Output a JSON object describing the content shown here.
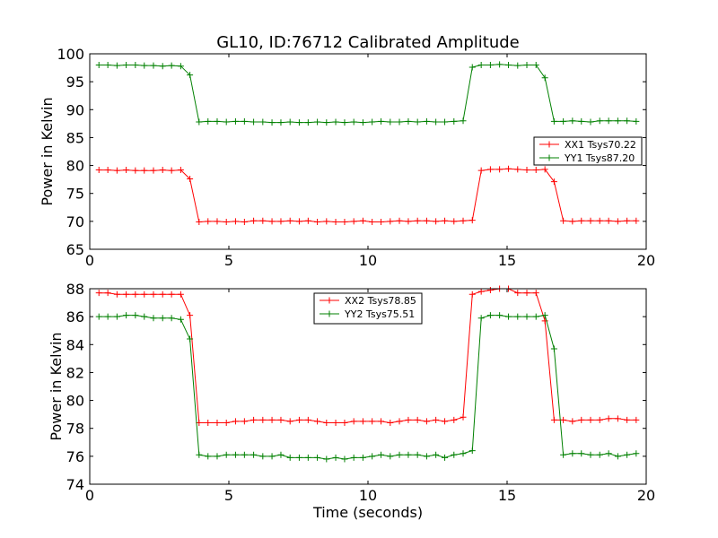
{
  "chart_data": [
    {
      "type": "line",
      "title": "GL10, ID:76712 Calibrated Amplitude",
      "xlabel": "",
      "ylabel": "Power in Kelvin",
      "xlim": [
        0,
        20
      ],
      "ylim": [
        65,
        100
      ],
      "xticks": [
        "0",
        "5",
        "10",
        "15",
        "20"
      ],
      "yticks": [
        "65",
        "70",
        "75",
        "80",
        "85",
        "90",
        "95",
        "100"
      ],
      "legend_position": "center-right",
      "x": [
        0.33,
        0.65,
        0.98,
        1.31,
        1.64,
        1.96,
        2.29,
        2.62,
        2.94,
        3.27,
        3.6,
        3.93,
        4.25,
        4.58,
        4.91,
        5.24,
        5.56,
        5.89,
        6.22,
        6.55,
        6.87,
        7.2,
        7.53,
        7.85,
        8.18,
        8.51,
        8.84,
        9.16,
        9.49,
        9.82,
        10.15,
        10.47,
        10.8,
        11.13,
        11.45,
        11.78,
        12.11,
        12.44,
        12.76,
        13.09,
        13.42,
        13.75,
        14.07,
        14.4,
        14.73,
        15.05,
        15.38,
        15.71,
        16.04,
        16.36,
        16.69,
        17.02,
        17.35,
        17.67,
        18.0,
        18.33,
        18.65,
        18.98,
        19.31,
        19.64
      ],
      "series": [
        {
          "name": "XX1 Tsys70.22",
          "color": "#ff0000",
          "values": [
            79.2,
            79.2,
            79.1,
            79.2,
            79.1,
            79.1,
            79.1,
            79.2,
            79.1,
            79.2,
            77.6,
            69.9,
            70.0,
            70.0,
            69.9,
            70.0,
            69.9,
            70.1,
            70.1,
            70.0,
            70.0,
            70.1,
            70.0,
            70.1,
            69.9,
            70.0,
            69.9,
            69.9,
            70.0,
            70.1,
            69.9,
            69.9,
            70.0,
            70.1,
            70.0,
            70.1,
            70.1,
            70.0,
            70.1,
            70.0,
            70.1,
            70.2,
            79.1,
            79.3,
            79.3,
            79.4,
            79.3,
            79.2,
            79.2,
            79.3,
            77.1,
            70.1,
            70.0,
            70.1,
            70.1,
            70.1,
            70.1,
            70.0,
            70.1,
            70.1
          ]
        },
        {
          "name": "YY1 Tsys87.20",
          "color": "#008000",
          "values": [
            98.0,
            98.0,
            97.9,
            98.0,
            98.0,
            97.9,
            97.9,
            97.8,
            97.9,
            97.8,
            96.2,
            87.8,
            87.9,
            87.9,
            87.8,
            87.9,
            87.9,
            87.8,
            87.8,
            87.7,
            87.7,
            87.8,
            87.7,
            87.7,
            87.8,
            87.7,
            87.8,
            87.7,
            87.8,
            87.7,
            87.8,
            87.9,
            87.8,
            87.8,
            87.9,
            87.8,
            87.9,
            87.8,
            87.8,
            87.9,
            88.0,
            97.6,
            98.0,
            98.0,
            98.1,
            98.0,
            97.9,
            98.0,
            98.0,
            95.7,
            87.9,
            87.9,
            88.0,
            87.9,
            87.8,
            88.0,
            88.0,
            88.0,
            88.0,
            87.9
          ]
        }
      ]
    },
    {
      "type": "line",
      "title": "",
      "xlabel": "Time (seconds)",
      "ylabel": "Power in Kelvin",
      "xlim": [
        0,
        20
      ],
      "ylim": [
        74,
        88
      ],
      "xticks": [
        "0",
        "5",
        "10",
        "15",
        "20"
      ],
      "yticks": [
        "74",
        "76",
        "78",
        "80",
        "82",
        "84",
        "86",
        "88"
      ],
      "legend_position": "top-center",
      "x": [
        0.33,
        0.65,
        0.98,
        1.31,
        1.64,
        1.96,
        2.29,
        2.62,
        2.94,
        3.27,
        3.6,
        3.93,
        4.25,
        4.58,
        4.91,
        5.24,
        5.56,
        5.89,
        6.22,
        6.55,
        6.87,
        7.2,
        7.53,
        7.85,
        8.18,
        8.51,
        8.84,
        9.16,
        9.49,
        9.82,
        10.15,
        10.47,
        10.8,
        11.13,
        11.45,
        11.78,
        12.11,
        12.44,
        12.76,
        13.09,
        13.42,
        13.75,
        14.07,
        14.4,
        14.73,
        15.05,
        15.38,
        15.71,
        16.04,
        16.36,
        16.69,
        17.02,
        17.35,
        17.67,
        18.0,
        18.33,
        18.65,
        18.98,
        19.31,
        19.64
      ],
      "series": [
        {
          "name": "XX2 Tsys78.85",
          "color": "#ff0000",
          "values": [
            87.7,
            87.7,
            87.6,
            87.6,
            87.6,
            87.6,
            87.6,
            87.6,
            87.6,
            87.6,
            86.1,
            78.4,
            78.4,
            78.4,
            78.4,
            78.5,
            78.5,
            78.6,
            78.6,
            78.6,
            78.6,
            78.5,
            78.6,
            78.6,
            78.5,
            78.4,
            78.4,
            78.4,
            78.5,
            78.5,
            78.5,
            78.5,
            78.4,
            78.5,
            78.6,
            78.6,
            78.5,
            78.6,
            78.5,
            78.6,
            78.8,
            87.6,
            87.8,
            87.9,
            88.0,
            88.0,
            87.7,
            87.7,
            87.7,
            85.7,
            78.6,
            78.6,
            78.5,
            78.6,
            78.6,
            78.6,
            78.7,
            78.7,
            78.6,
            78.6
          ]
        },
        {
          "name": "YY2 Tsys75.51",
          "color": "#008000",
          "values": [
            86.0,
            86.0,
            86.0,
            86.1,
            86.1,
            86.0,
            85.9,
            85.9,
            85.9,
            85.8,
            84.4,
            76.1,
            76.0,
            76.0,
            76.1,
            76.1,
            76.1,
            76.1,
            76.0,
            76.0,
            76.1,
            75.9,
            75.9,
            75.9,
            75.9,
            75.8,
            75.9,
            75.8,
            75.9,
            75.9,
            76.0,
            76.1,
            76.0,
            76.1,
            76.1,
            76.1,
            76.0,
            76.1,
            75.9,
            76.1,
            76.2,
            76.4,
            85.9,
            86.1,
            86.1,
            86.0,
            86.0,
            86.0,
            86.0,
            86.1,
            83.7,
            76.1,
            76.2,
            76.2,
            76.1,
            76.1,
            76.2,
            76.0,
            76.1,
            76.2
          ]
        }
      ]
    }
  ]
}
